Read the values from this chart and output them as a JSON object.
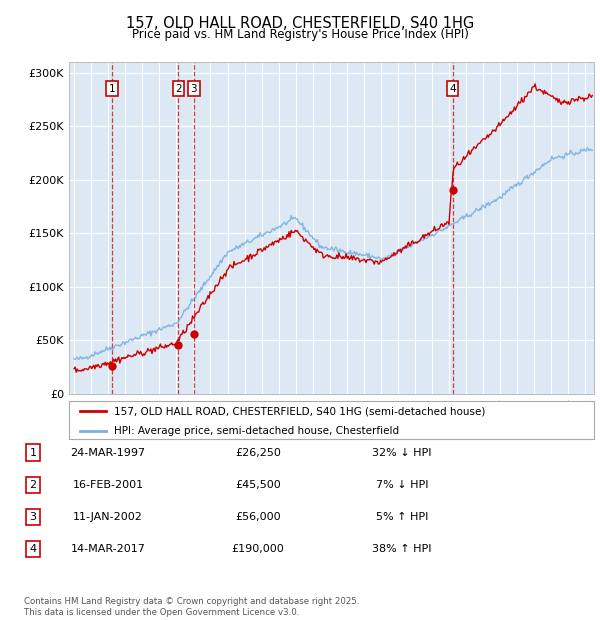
{
  "title": "157, OLD HALL ROAD, CHESTERFIELD, S40 1HG",
  "subtitle": "Price paid vs. HM Land Registry's House Price Index (HPI)",
  "xlim": [
    1994.7,
    2025.5
  ],
  "ylim": [
    0,
    310000
  ],
  "yticks": [
    0,
    50000,
    100000,
    150000,
    200000,
    250000,
    300000
  ],
  "ytick_labels": [
    "£0",
    "£50K",
    "£100K",
    "£150K",
    "£200K",
    "£250K",
    "£300K"
  ],
  "xticks": [
    1995,
    1996,
    1997,
    1998,
    1999,
    2000,
    2001,
    2002,
    2003,
    2004,
    2005,
    2006,
    2007,
    2008,
    2009,
    2010,
    2011,
    2012,
    2013,
    2014,
    2015,
    2016,
    2017,
    2018,
    2019,
    2020,
    2021,
    2022,
    2023,
    2024,
    2025
  ],
  "price_paid": [
    {
      "year": 1997.23,
      "price": 26250,
      "label": "1"
    },
    {
      "year": 2001.12,
      "price": 45500,
      "label": "2"
    },
    {
      "year": 2002.03,
      "price": 56000,
      "label": "3"
    },
    {
      "year": 2017.2,
      "price": 190000,
      "label": "4"
    }
  ],
  "hpi_color": "#7aafdf",
  "price_color": "#cc0000",
  "vline_color": "#cc0000",
  "box_color": "#cc0000",
  "legend_label_price": "157, OLD HALL ROAD, CHESTERFIELD, S40 1HG (semi-detached house)",
  "legend_label_hpi": "HPI: Average price, semi-detached house, Chesterfield",
  "table_rows": [
    {
      "num": "1",
      "date": "24-MAR-1997",
      "price": "£26,250",
      "hpi": "32% ↓ HPI"
    },
    {
      "num": "2",
      "date": "16-FEB-2001",
      "price": "£45,500",
      "hpi": "7% ↓ HPI"
    },
    {
      "num": "3",
      "date": "11-JAN-2002",
      "price": "£56,000",
      "hpi": "5% ↑ HPI"
    },
    {
      "num": "4",
      "date": "14-MAR-2017",
      "price": "£190,000",
      "hpi": "38% ↑ HPI"
    }
  ],
  "footer": "Contains HM Land Registry data © Crown copyright and database right 2025.\nThis data is licensed under the Open Government Licence v3.0.",
  "background_plot": "#dce9f5",
  "background_fig": "#ffffff"
}
